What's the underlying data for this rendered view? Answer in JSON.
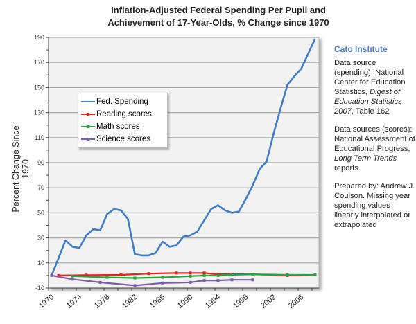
{
  "chart_data": {
    "type": "line",
    "title": "Inflation-Adjusted Federal Spending Per Pupil and Achievement of 17-Year-Olds,  % Change since 1970",
    "title_lines": [
      "Inflation-Adjusted Federal Spending Per Pupil and",
      "Achievement of 17-Year-Olds,  % Change since 1970"
    ],
    "xlabel": "",
    "ylabel": "Percent Change Since 1970",
    "xlim": [
      1970,
      2008
    ],
    "ylim": [
      -10,
      190
    ],
    "yticks": [
      -10,
      10,
      30,
      50,
      70,
      90,
      110,
      130,
      150,
      170,
      190
    ],
    "xticks": [
      1970,
      1974,
      1978,
      1982,
      1986,
      1990,
      1994,
      1998,
      2002,
      2006
    ],
    "grid": true,
    "legend_position": "upper-left",
    "series": [
      {
        "name": "Fed. Spending",
        "color": "#3a7dc9",
        "markers": false,
        "x": [
          1970,
          1971,
          1972,
          1973,
          1974,
          1975,
          1976,
          1977,
          1978,
          1979,
          1980,
          1981,
          1982,
          1983,
          1984,
          1985,
          1986,
          1987,
          1988,
          1989,
          1990,
          1991,
          1992,
          1993,
          1994,
          1995,
          1996,
          1997,
          1998,
          1999,
          2000,
          2001,
          2002,
          2003,
          2004,
          2005,
          2006,
          2007,
          2008
        ],
        "values": [
          0,
          14,
          28,
          23,
          22,
          32,
          37,
          36,
          49,
          53,
          52,
          45,
          17,
          16,
          16,
          18,
          27,
          23,
          24,
          31,
          32,
          35,
          44,
          53,
          56,
          52,
          50,
          51,
          61,
          72,
          85,
          91,
          113,
          133,
          152,
          159,
          165,
          177,
          189
        ]
      },
      {
        "name": "Reading scores",
        "color": "#e8201c",
        "markers": true,
        "x": [
          1971,
          1975,
          1980,
          1984,
          1988,
          1990,
          1992,
          1994,
          1996,
          1999,
          2004,
          2008
        ],
        "values": [
          0,
          0.3,
          0.5,
          1.5,
          2,
          2,
          2,
          1,
          1,
          1,
          0,
          0.5
        ]
      },
      {
        "name": "Math scores",
        "color": "#22a83a",
        "markers": true,
        "x": [
          1973,
          1978,
          1982,
          1986,
          1990,
          1992,
          1994,
          1996,
          1999,
          2004,
          2008
        ],
        "values": [
          -0.5,
          -1.5,
          -2,
          -1.5,
          -0.5,
          0,
          0,
          0.5,
          1,
          0.5,
          0.5
        ]
      },
      {
        "name": "Science scores",
        "color": "#7b5ca8",
        "markers": true,
        "x": [
          1970,
          1973,
          1977,
          1982,
          1986,
          1990,
          1992,
          1994,
          1996,
          1999
        ],
        "values": [
          0,
          -3,
          -5.5,
          -8,
          -6,
          -5.5,
          -4,
          -4,
          -3.5,
          -3.5
        ]
      }
    ]
  },
  "sidebar": {
    "brand": "Cato Institute",
    "source_spending_1": "Data source (spending): National Center for Education Statistics, ",
    "source_spending_italic": "Digest of Education Statistics 2007",
    "source_spending_2": ", Table 162",
    "source_scores_1": "Data sources (scores): National Assessment of Educational Progress, ",
    "source_scores_italic": "Long Term Trends",
    "source_scores_2": " reports.",
    "prepared": "Prepared by: Andrew J. Coulson. Missing year spending values linearly interpolated or extrapolated"
  }
}
